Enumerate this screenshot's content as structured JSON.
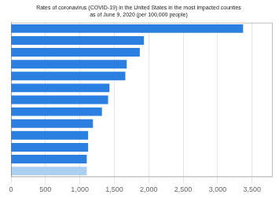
{
  "chart_data": {
    "type": "bar",
    "orientation": "horizontal",
    "title": "Rates of coronavirus (COVID-19) in the United States in the most impacted counties\nas of June 9, 2020 (per 100,000 people)",
    "categories": [
      null,
      null,
      null,
      null,
      null,
      null,
      null,
      null,
      null,
      null,
      null,
      null,
      null
    ],
    "values": [
      3370,
      1930,
      1870,
      1680,
      1660,
      1430,
      1410,
      1320,
      1190,
      1120,
      1120,
      1100,
      1100
    ],
    "colors": [
      "#2B7FE0",
      "#2B7FE0",
      "#2B7FE0",
      "#2B7FE0",
      "#2B7FE0",
      "#2B7FE0",
      "#2B7FE0",
      "#2B7FE0",
      "#2B7FE0",
      "#2B7FE0",
      "#2B7FE0",
      "#2B7FE0",
      "#aacff0"
    ],
    "xlim": [
      0,
      3800
    ],
    "xticks": [
      0,
      500,
      {
        "value": 1000,
        "label": "1,000"
      },
      {
        "value": 1500,
        "label": "1,500"
      },
      {
        "value": 2000,
        "label": "2,000"
      },
      {
        "value": 2500,
        "label": "2,500"
      },
      {
        "value": 3000,
        "label": "3,000"
      },
      {
        "value": 3500,
        "label": "3,500"
      }
    ],
    "grid": true,
    "tick_labels": "x"
  }
}
